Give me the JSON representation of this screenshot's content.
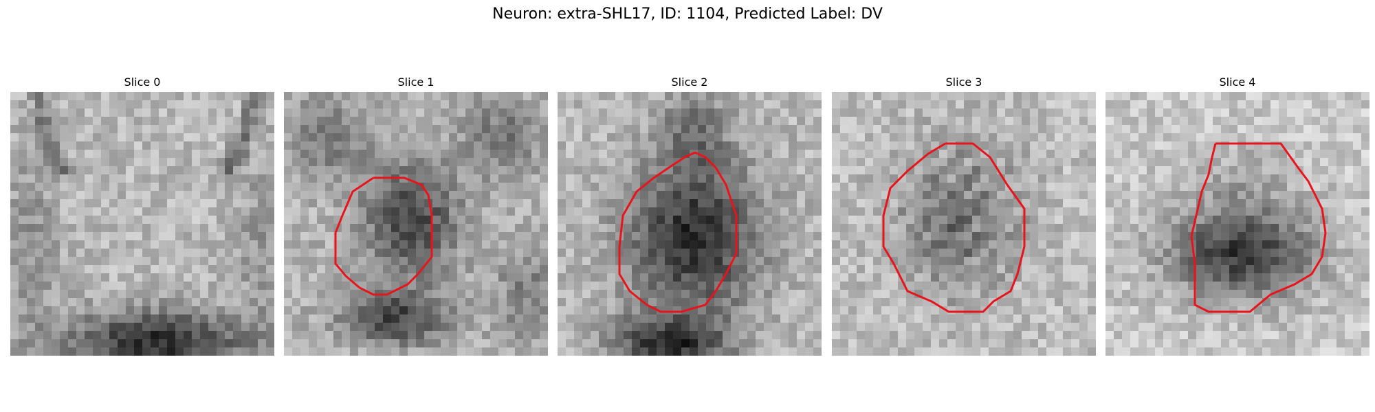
{
  "figure": {
    "title": "Neuron: extra-SHL17, ID: 1104, Predicted Label: DV"
  },
  "panels": [
    {
      "title": "Slice 0"
    },
    {
      "title": "Slice 1"
    },
    {
      "title": "Slice 2"
    },
    {
      "title": "Slice 3"
    },
    {
      "title": "Slice 4"
    }
  ],
  "colors": {
    "contour": "#e8141c"
  }
}
